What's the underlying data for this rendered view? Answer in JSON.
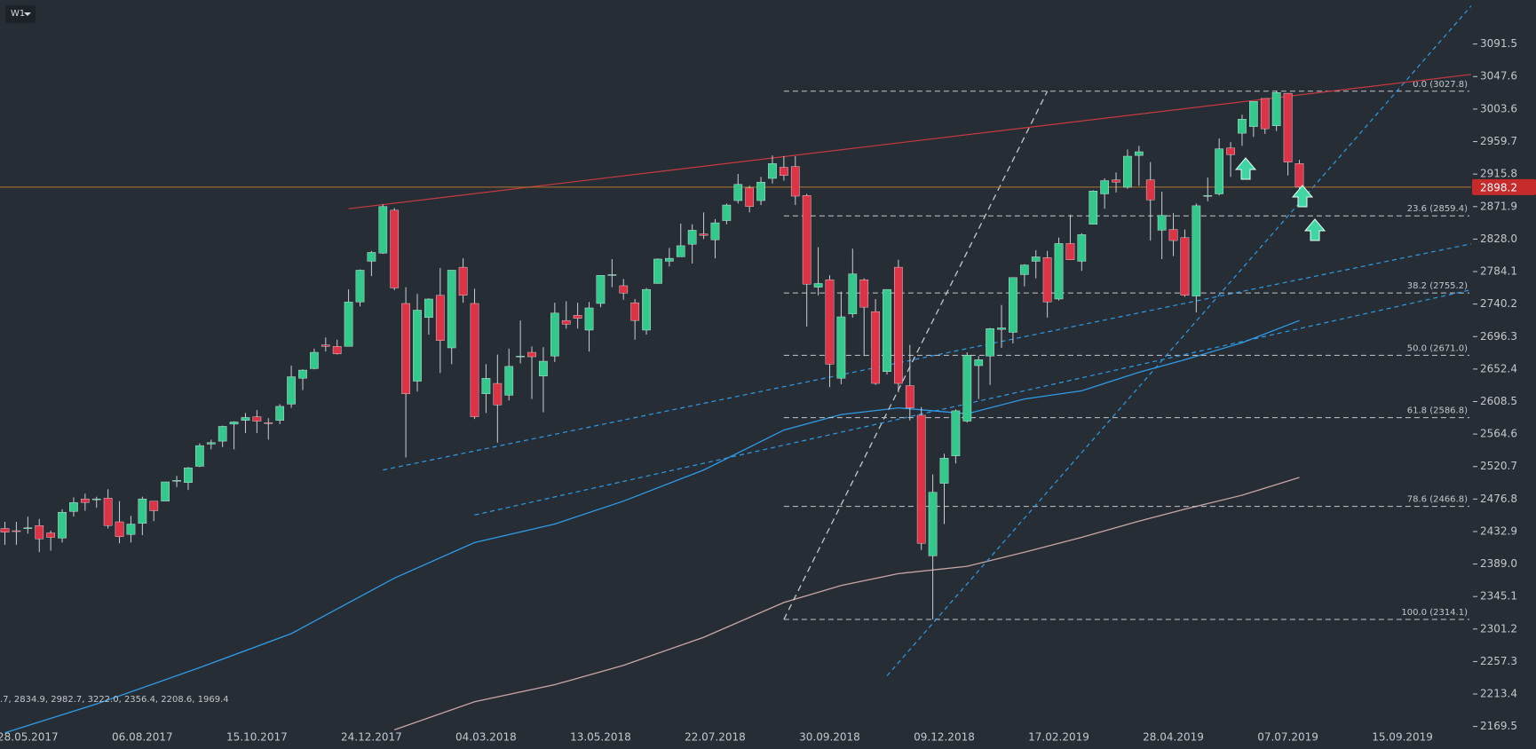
{
  "chart_data": {
    "type": "candlestick",
    "timeframe": "W1",
    "annotation": ".7, 2834.9, 2982.7, 3222.0, 2356.4, 2208.6, 1969.4",
    "up_color": "#33c98c",
    "down_color": "#dd3347",
    "wick_color": "#c9ced3",
    "x": [
      "14.05.2017",
      "21.05.2017",
      "28.05.2017",
      "04.06.2017",
      "11.06.2017",
      "18.06.2017",
      "25.06.2017",
      "02.07.2017",
      "09.07.2017",
      "16.07.2017",
      "23.07.2017",
      "30.07.2017",
      "06.08.2017",
      "13.08.2017",
      "20.08.2017",
      "27.08.2017",
      "03.09.2017",
      "10.09.2017",
      "17.09.2017",
      "24.09.2017",
      "01.10.2017",
      "08.10.2017",
      "15.10.2017",
      "22.10.2017",
      "29.10.2017",
      "05.11.2017",
      "12.11.2017",
      "19.11.2017",
      "26.11.2017",
      "03.12.2017",
      "10.12.2017",
      "17.12.2017",
      "24.12.2017",
      "31.12.2017",
      "07.01.2018",
      "14.01.2018",
      "21.01.2018",
      "28.01.2018",
      "04.02.2018",
      "11.02.2018",
      "18.02.2018",
      "25.02.2018",
      "04.03.2018",
      "11.03.2018",
      "18.03.2018",
      "25.03.2018",
      "01.04.2018",
      "08.04.2018",
      "15.04.2018",
      "22.04.2018",
      "29.04.2018",
      "06.05.2018",
      "13.05.2018",
      "20.05.2018",
      "27.05.2018",
      "03.06.2018",
      "10.06.2018",
      "17.06.2018",
      "24.06.2018",
      "01.07.2018",
      "08.07.2018",
      "15.07.2018",
      "22.07.2018",
      "29.07.2018",
      "05.08.2018",
      "12.08.2018",
      "19.08.2018",
      "26.08.2018",
      "02.09.2018",
      "09.09.2018",
      "16.09.2018",
      "23.09.2018",
      "30.09.2018",
      "07.10.2018",
      "14.10.2018",
      "21.10.2018",
      "28.10.2018",
      "04.11.2018",
      "11.11.2018",
      "18.11.2018",
      "25.11.2018",
      "02.12.2018",
      "09.12.2018",
      "16.12.2018",
      "23.12.2018",
      "30.12.2018",
      "06.01.2019",
      "13.01.2019",
      "20.01.2019",
      "27.01.2019",
      "03.02.2019",
      "10.02.2019",
      "17.02.2019",
      "24.02.2019",
      "03.03.2019",
      "10.03.2019",
      "17.03.2019",
      "24.03.2019",
      "31.03.2019",
      "07.04.2019",
      "14.04.2019",
      "21.04.2019",
      "28.04.2019",
      "05.05.2019",
      "12.05.2019",
      "19.05.2019",
      "26.05.2019",
      "02.06.2019",
      "09.06.2019",
      "16.06.2019",
      "23.06.2019",
      "30.06.2019",
      "07.07.2019",
      "14.07.2019"
    ],
    "open": [
      2437,
      2434,
      2437,
      2441,
      2431,
      2424,
      2460,
      2477,
      2477,
      2478,
      2446,
      2429,
      2444,
      2474,
      2474,
      2502,
      2499,
      2521,
      2551,
      2555,
      2578,
      2583,
      2588,
      2580,
      2583,
      2605,
      2640,
      2653,
      2685,
      2683,
      2683,
      2743,
      2798,
      2809,
      2867,
      2741,
      2636,
      2722,
      2752,
      2681,
      2790,
      2741,
      2619,
      2633,
      2617,
      2670,
      2675,
      2643,
      2670,
      2718,
      2725,
      2705,
      2741,
      2780,
      2765,
      2742,
      2705,
      2768,
      2798,
      2804,
      2821,
      2835,
      2827,
      2853,
      2880,
      2897,
      2880,
      2910,
      2925,
      2926,
      2887,
      2763,
      2773,
      2640,
      2727,
      2773,
      2730,
      2649,
      2790,
      2630,
      2590,
      2400,
      2498,
      2535,
      2582,
      2657,
      2670,
      2706,
      2702,
      2780,
      2798,
      2803,
      2747,
      2822,
      2798,
      2848,
      2889,
      2908,
      2898,
      2941,
      2908,
      2840,
      2841,
      2830,
      2751,
      2886,
      2889,
      2951,
      2971,
      2980,
      3018,
      2981,
      3025,
      2930
    ],
    "high": [
      2446,
      2446,
      2453,
      2450,
      2434,
      2463,
      2479,
      2484,
      2480,
      2490,
      2474,
      2454,
      2480,
      2474,
      2500,
      2508,
      2520,
      2552,
      2557,
      2576,
      2582,
      2593,
      2597,
      2586,
      2605,
      2657,
      2652,
      2680,
      2695,
      2692,
      2760,
      2787,
      2812,
      2875,
      2870,
      2763,
      2754,
      2748,
      2789,
      2786,
      2802,
      2761,
      2659,
      2672,
      2680,
      2718,
      2683,
      2682,
      2742,
      2744,
      2742,
      2743,
      2779,
      2801,
      2774,
      2747,
      2762,
      2802,
      2816,
      2849,
      2848,
      2864,
      2855,
      2876,
      2916,
      2900,
      2912,
      2941,
      2940,
      2940,
      2889,
      2817,
      2779,
      2757,
      2815,
      2775,
      2747,
      2760,
      2800,
      2685,
      2601,
      2510,
      2538,
      2598,
      2675,
      2670,
      2708,
      2739,
      2776,
      2794,
      2813,
      2812,
      2830,
      2861,
      2836,
      2894,
      2910,
      2918,
      2949,
      2954,
      2932,
      2892,
      2863,
      2841,
      2876,
      2911,
      2964,
      2959,
      2996,
      3014,
      3018,
      3027.8,
      3025,
      2935
    ],
    "low": [
      2415,
      2415,
      2430,
      2405,
      2407,
      2418,
      2453,
      2461,
      2465,
      2437,
      2417,
      2418,
      2428,
      2447,
      2474,
      2493,
      2489,
      2520,
      2544,
      2547,
      2544,
      2566,
      2566,
      2557,
      2578,
      2600,
      2624,
      2652,
      2676,
      2672,
      2683,
      2737,
      2778,
      2808,
      2759,
      2533,
      2622,
      2699,
      2647,
      2659,
      2742,
      2585,
      2593,
      2553,
      2610,
      2660,
      2612,
      2594,
      2662,
      2707,
      2707,
      2676,
      2736,
      2763,
      2746,
      2692,
      2699,
      2768,
      2791,
      2804,
      2795,
      2828,
      2802,
      2848,
      2876,
      2864,
      2874,
      2903,
      2907,
      2874,
      2710,
      2752,
      2628,
      2632,
      2722,
      2670,
      2631,
      2645,
      2621,
      2583,
      2408,
      2314.1,
      2443,
      2525,
      2580,
      2612,
      2631,
      2681,
      2687,
      2764,
      2775,
      2722,
      2745,
      2800,
      2785,
      2848,
      2869,
      2891,
      2896,
      2900,
      2826,
      2801,
      2805,
      2750,
      2729,
      2879,
      2887,
      2912,
      2954,
      2966,
      2970,
      2974,
      2914,
      2890
    ],
    "close": [
      2432,
      2433,
      2438,
      2423,
      2425,
      2459,
      2472,
      2472,
      2477,
      2441,
      2426,
      2443,
      2477,
      2461,
      2500,
      2502,
      2519,
      2549,
      2553,
      2575,
      2581,
      2587,
      2582,
      2579,
      2602,
      2642,
      2651,
      2675,
      2683,
      2673,
      2743,
      2786,
      2810,
      2872,
      2762,
      2619,
      2732,
      2747,
      2691,
      2786,
      2752,
      2588,
      2640,
      2604,
      2656,
      2670,
      2669,
      2663,
      2728,
      2713,
      2721,
      2735,
      2779,
      2780,
      2755,
      2718,
      2760,
      2801,
      2802,
      2819,
      2840,
      2833,
      2850,
      2874,
      2902,
      2872,
      2905,
      2930,
      2914,
      2886,
      2767,
      2768,
      2659,
      2723,
      2781,
      2736,
      2633,
      2760,
      2633,
      2600,
      2417,
      2486,
      2532,
      2596,
      2671,
      2665,
      2707,
      2708,
      2776,
      2793,
      2804,
      2743,
      2822,
      2800,
      2834,
      2893,
      2907,
      2905,
      2940,
      2946,
      2881,
      2860,
      2826,
      2752,
      2873,
      2887,
      2950,
      2942,
      2990,
      3014,
      2977,
      3026,
      2932,
      2898.2
    ],
    "xlim": [
      "11.05.2017",
      "27.10.2019"
    ],
    "ylim": [
      2139.1,
      3151.0
    ],
    "xticks": [
      "28.05.2017",
      "06.08.2017",
      "15.10.2017",
      "24.12.2017",
      "04.03.2018",
      "13.05.2018",
      "22.07.2018",
      "30.09.2018",
      "09.12.2018",
      "17.02.2019",
      "28.04.2019",
      "07.07.2019",
      "15.09.2019"
    ],
    "yticks": [
      3091.5,
      3047.6,
      3003.6,
      2959.7,
      2915.8,
      2871.9,
      {
        "value": 2828,
        "label": "2828.0"
      },
      2784.1,
      2740.2,
      2696.3,
      2652.4,
      2608.5,
      2564.6,
      2520.7,
      2476.8,
      2432.9,
      {
        "value": 2389,
        "label": "2389.0"
      },
      2345.1,
      2301.2,
      2257.3,
      2213.4,
      2169.5
    ],
    "grid": false,
    "last_price_color": "#b5762d",
    "last_price_tag_color": "#c62a2a",
    "overlays": [
      {
        "color": "#2e9be6",
        "x": [
          "14.05.2017",
          "09.07.2017",
          "10.09.2017",
          "05.11.2017",
          "07.01.2018",
          "25.02.2018",
          "15.04.2018",
          "27.05.2018",
          "15.07.2018",
          "02.09.2018",
          "07.10.2018",
          "11.11.2018",
          "23.12.2018",
          "27.01.2019",
          "03.03.2019",
          "07.04.2019",
          "05.05.2019",
          "09.06.2019",
          "14.07.2019"
        ],
        "values": [
          2161,
          2200,
          2249,
          2295,
          2370,
          2418,
          2443,
          2474,
          2516,
          2570,
          2591,
          2600,
          2592,
          2612,
          2623,
          2648,
          2665,
          2688,
          2718
        ]
      },
      {
        "color": "#c9a6a6",
        "x": [
          "07.01.2018",
          "25.02.2018",
          "15.04.2018",
          "27.05.2018",
          "15.07.2018",
          "02.09.2018",
          "07.10.2018",
          "11.11.2018",
          "23.12.2018",
          "27.01.2019",
          "03.03.2019",
          "07.04.2019",
          "05.05.2019",
          "09.06.2019",
          "14.07.2019"
        ],
        "values": [
          2165,
          2203,
          2226,
          2252,
          2290,
          2337,
          2360,
          2376,
          2386,
          2405,
          2425,
          2447,
          2463,
          2482,
          2506
        ]
      }
    ],
    "trendlines": [
      {
        "color": "#c83a3f",
        "dashed": false,
        "from": [
          "10.12.2017",
          2869
        ],
        "to": [
          "27.10.2019",
          3050.5
        ]
      },
      {
        "color": "#2e9be6",
        "dashed": true,
        "from": [
          "31.12.2017",
          2516
        ],
        "to": [
          "27.10.2019",
          2821.6
        ]
      },
      {
        "color": "#2e9be6",
        "dashed": true,
        "from": [
          "25.02.2018",
          2455.2
        ],
        "to": [
          "27.10.2019",
          2759.5
        ]
      },
      {
        "color": "#2e9be6",
        "dashed": true,
        "from": [
          "04.11.2018",
          2238
        ],
        "to": [
          "27.10.2019",
          3143
        ]
      }
    ],
    "fib": {
      "color": "#c4c8cc",
      "from": [
        "02.09.2018",
        2314.1
      ],
      "to": [
        "10.02.2019",
        3027.8
      ],
      "levels": [
        {
          "value": 3027.8,
          "label": "0.0 (3027.8)"
        },
        {
          "value": 2859.4,
          "label": "23.6 (2859.4)"
        },
        {
          "value": 2755.2,
          "label": "38.2 (2755.2)"
        },
        {
          "value": 2671.0,
          "label": "50.0 (2671.0)"
        },
        {
          "value": 2586.8,
          "label": "61.8 (2586.8)"
        },
        {
          "value": 2466.8,
          "label": "78.6 (2466.8)"
        },
        {
          "value": 2314.1,
          "label": "100.0 (2314.1)"
        }
      ]
    }
  }
}
